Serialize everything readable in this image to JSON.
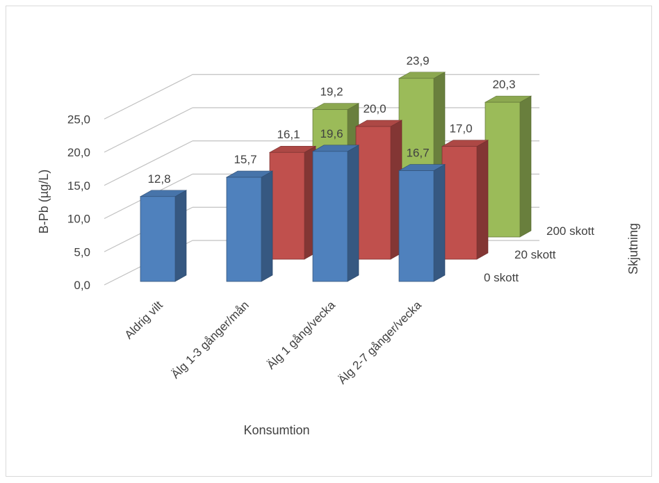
{
  "chart_data": {
    "type": "bar",
    "subtype": "3d-clustered-column",
    "title": "",
    "xlabel": "Konsumtion",
    "ylabel": "B-Pb (µg/L)",
    "zlabel": "Skjutning",
    "ylim": [
      0,
      25
    ],
    "yticks": [
      "0,0",
      "5,0",
      "10,0",
      "15,0",
      "20,0",
      "25,0"
    ],
    "grid": true,
    "categories": [
      "Aldrig vilt",
      "Älg 1-3 gånger/mån",
      "Älg 1 gång/vecka",
      "Älg 2-7 gånger/vecka"
    ],
    "series": [
      {
        "name": "0 skott",
        "color": "#4f81bd",
        "values": [
          12.8,
          15.7,
          19.6,
          16.7
        ],
        "labels": [
          "12,8",
          "15,7",
          "19,6",
          "16,7"
        ]
      },
      {
        "name": "20 skott",
        "color": "#c0504d",
        "values": [
          null,
          16.1,
          20.0,
          17.0
        ],
        "labels": [
          "",
          "16,1",
          "20,0",
          "17,0"
        ]
      },
      {
        "name": "200 skott",
        "color": "#9bbb59",
        "values": [
          null,
          19.2,
          23.9,
          20.3
        ],
        "labels": [
          "",
          "19,2",
          "23,9",
          "20,3"
        ]
      }
    ]
  }
}
